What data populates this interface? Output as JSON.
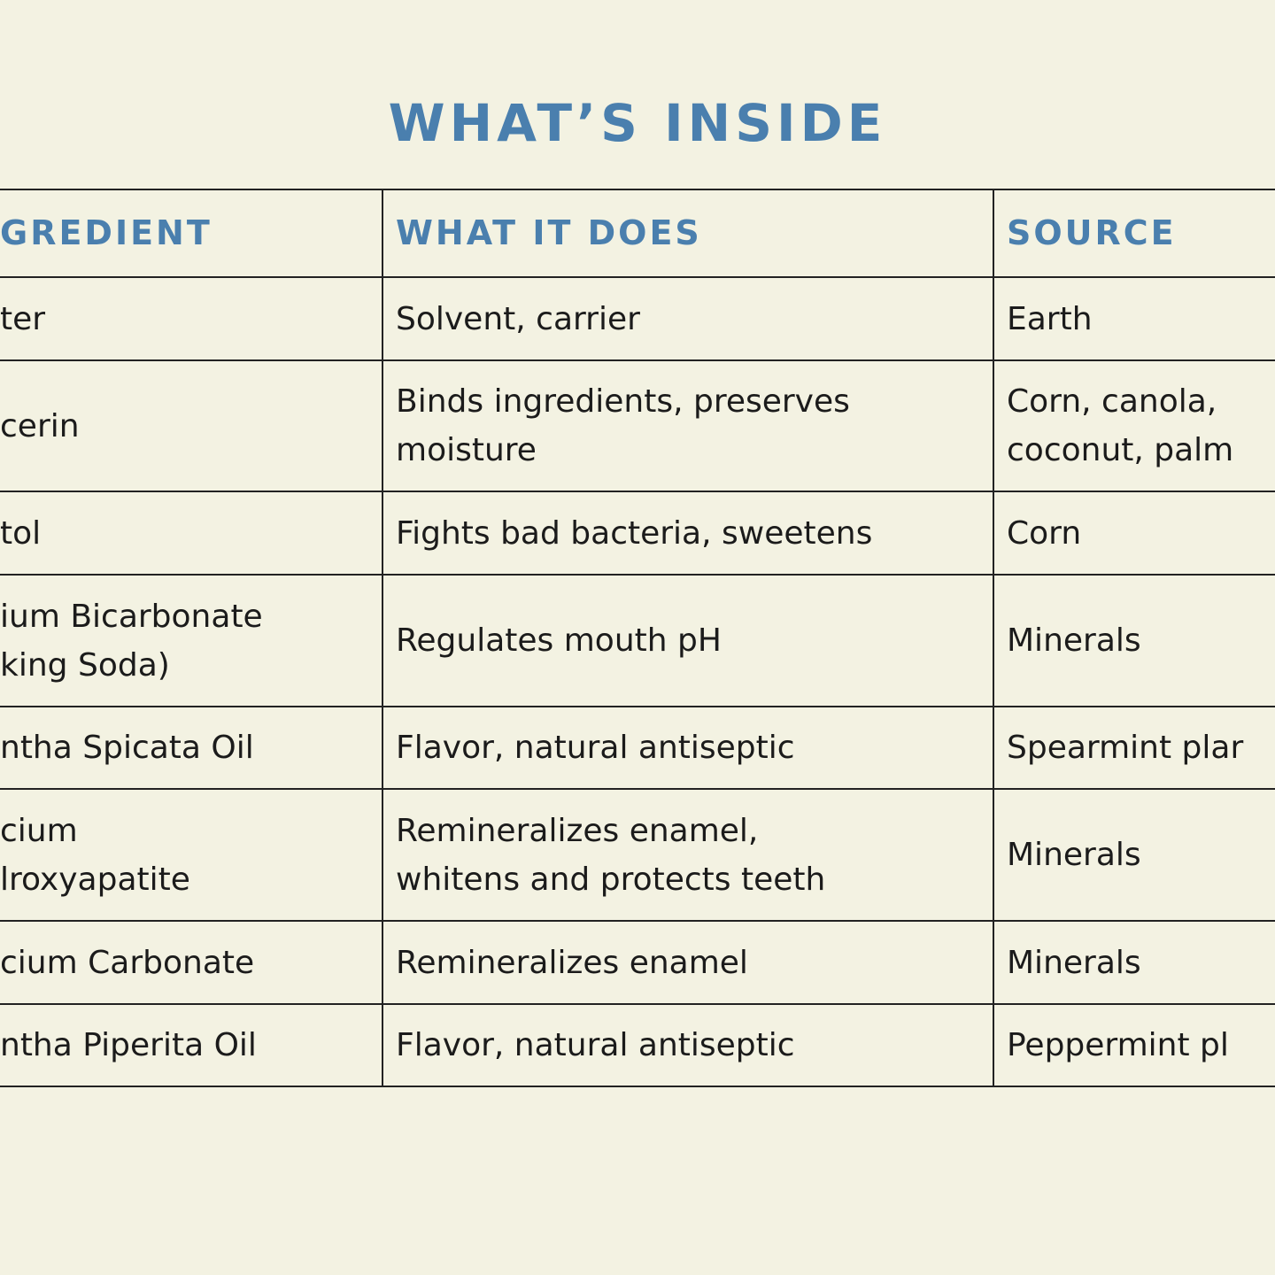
{
  "title": "WHAT’S INSIDE",
  "table": {
    "header": [
      "GREDIENT",
      "WHAT IT DOES",
      "SOURCE"
    ],
    "rows": [
      [
        [
          "ter"
        ],
        [
          "Solvent, carrier"
        ],
        [
          "Earth"
        ]
      ],
      [
        [
          "cerin"
        ],
        [
          "Binds ingredients, preserves",
          "moisture"
        ],
        [
          "Corn, canola,",
          "coconut, palm"
        ]
      ],
      [
        [
          "tol"
        ],
        [
          "Fights bad bacteria, sweetens"
        ],
        [
          "Corn"
        ]
      ],
      [
        [
          "ium Bicarbonate",
          "king Soda)"
        ],
        [
          "Regulates mouth pH"
        ],
        [
          "Minerals"
        ]
      ],
      [
        [
          "ntha Spicata Oil"
        ],
        [
          "Flavor, natural antiseptic"
        ],
        [
          "Spearmint plar"
        ]
      ],
      [
        [
          "cium",
          "lroxyapatite"
        ],
        [
          "Remineralizes enamel,",
          "whitens and protects teeth"
        ],
        [
          "Minerals"
        ]
      ],
      [
        [
          "cium Carbonate"
        ],
        [
          "Remineralizes enamel"
        ],
        [
          "Minerals"
        ]
      ],
      [
        [
          "ntha Piperita Oil"
        ],
        [
          "Flavor, natural antiseptic"
        ],
        [
          "Peppermint pl"
        ]
      ]
    ]
  }
}
